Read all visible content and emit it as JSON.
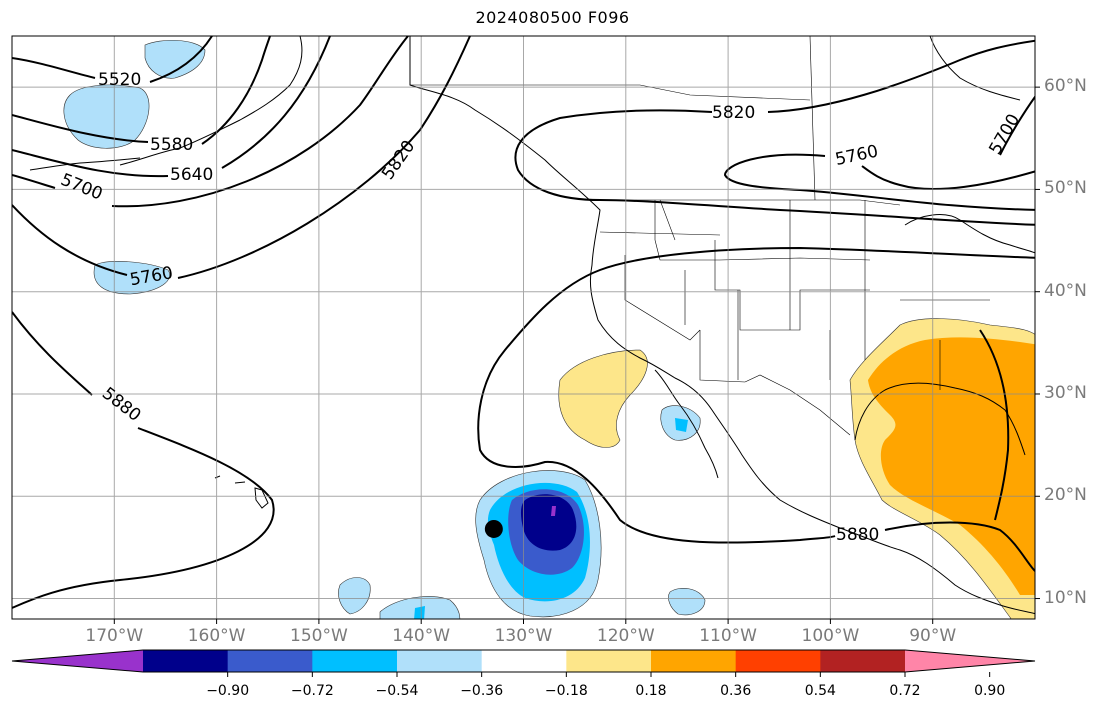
{
  "title": "2024080500 F096",
  "map": {
    "extent_lon": [
      -180,
      -80
    ],
    "extent_lat": [
      8,
      65
    ],
    "lat_labels": [
      {
        "lat": 60,
        "text": "60°N"
      },
      {
        "lat": 50,
        "text": "50°N"
      },
      {
        "lat": 40,
        "text": "40°N"
      },
      {
        "lat": 30,
        "text": "30°N"
      },
      {
        "lat": 20,
        "text": "20°N"
      },
      {
        "lat": 10,
        "text": "10°N"
      }
    ],
    "lon_labels": [
      {
        "lon": -170,
        "text": "170°W"
      },
      {
        "lon": -160,
        "text": "160°W"
      },
      {
        "lon": -150,
        "text": "150°W"
      },
      {
        "lon": -140,
        "text": "140°W"
      },
      {
        "lon": -130,
        "text": "130°W"
      },
      {
        "lon": -120,
        "text": "120°W"
      },
      {
        "lon": -110,
        "text": "110°W"
      },
      {
        "lon": -100,
        "text": "100°W"
      },
      {
        "lon": -90,
        "text": "90°W"
      }
    ],
    "contour_labels": [
      "5520",
      "5580",
      "5640",
      "5700",
      "5760",
      "5820",
      "5880"
    ],
    "marker": {
      "lat": 16.8,
      "lon": -132.9
    }
  },
  "colorbar": {
    "colors": [
      "#9932cc",
      "#00008b",
      "#3a5bcc",
      "#00bfff",
      "#b0e0fa",
      "#ffffff",
      "#fde68a",
      "#ffa500",
      "#ff4000",
      "#b22222",
      "#ff85a8"
    ],
    "tick_labels": [
      "−0.90",
      "−0.72",
      "−0.54",
      "−0.36",
      "−0.18",
      "0.18",
      "0.36",
      "0.54",
      "0.72",
      "0.90"
    ]
  }
}
